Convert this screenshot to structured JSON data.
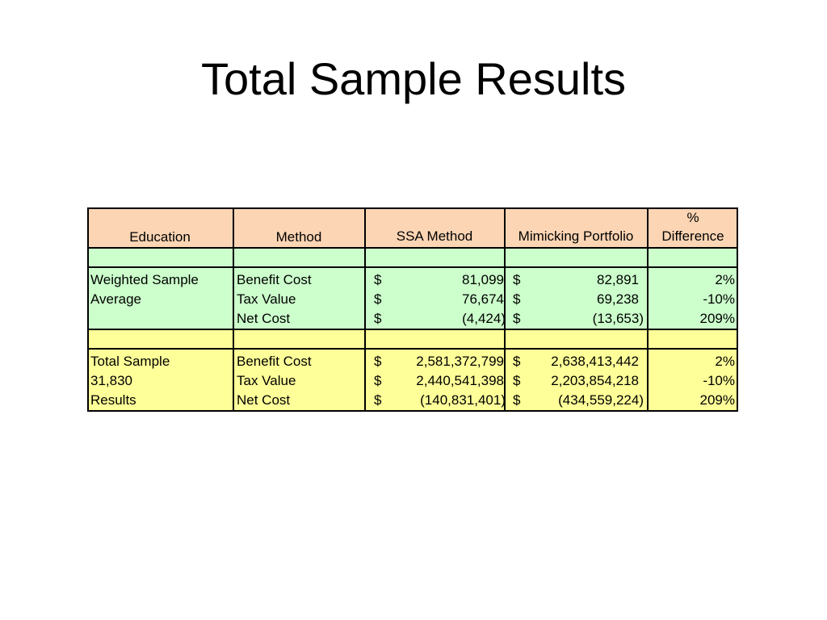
{
  "title": "Total Sample Results",
  "colors": {
    "header_fill": "#fcd5b4",
    "weighted_fill": "#ccffcc",
    "total_fill": "#ffff99"
  },
  "headers": {
    "education": "Education",
    "method": "Method",
    "ssa": "SSA Method",
    "mimicking": "Mimicking Portfolio",
    "pct_line1": "%",
    "pct_line2": "Difference"
  },
  "sections": [
    {
      "education_lines": [
        "Weighted Sample",
        "Average",
        ""
      ],
      "rows": [
        {
          "method": "Benefit Cost",
          "ssa_sym": "$",
          "ssa": "81,099",
          "mim_sym": "$",
          "mim": "82,891",
          "pct": "2%"
        },
        {
          "method": "Tax Value",
          "ssa_sym": "$",
          "ssa": "76,674",
          "mim_sym": "$",
          "mim": "69,238",
          "pct": "-10%"
        },
        {
          "method": "Net Cost",
          "ssa_sym": "$",
          "ssa": "(4,424)",
          "mim_sym": "$",
          "mim": "(13,653)",
          "pct": "209%"
        }
      ]
    },
    {
      "education_lines": [
        "Total Sample",
        "31,830",
        "Results"
      ],
      "rows": [
        {
          "method": "Benefit Cost",
          "ssa_sym": "$",
          "ssa": "2,581,372,799",
          "mim_sym": "$",
          "mim": "2,638,413,442",
          "pct": "2%"
        },
        {
          "method": "Tax Value",
          "ssa_sym": "$",
          "ssa": "2,440,541,398",
          "mim_sym": "$",
          "mim": "2,203,854,218",
          "pct": "-10%"
        },
        {
          "method": "Net Cost",
          "ssa_sym": "$",
          "ssa": "(140,831,401)",
          "mim_sym": "$",
          "mim": "(434,559,224)",
          "pct": "209%"
        }
      ]
    }
  ]
}
